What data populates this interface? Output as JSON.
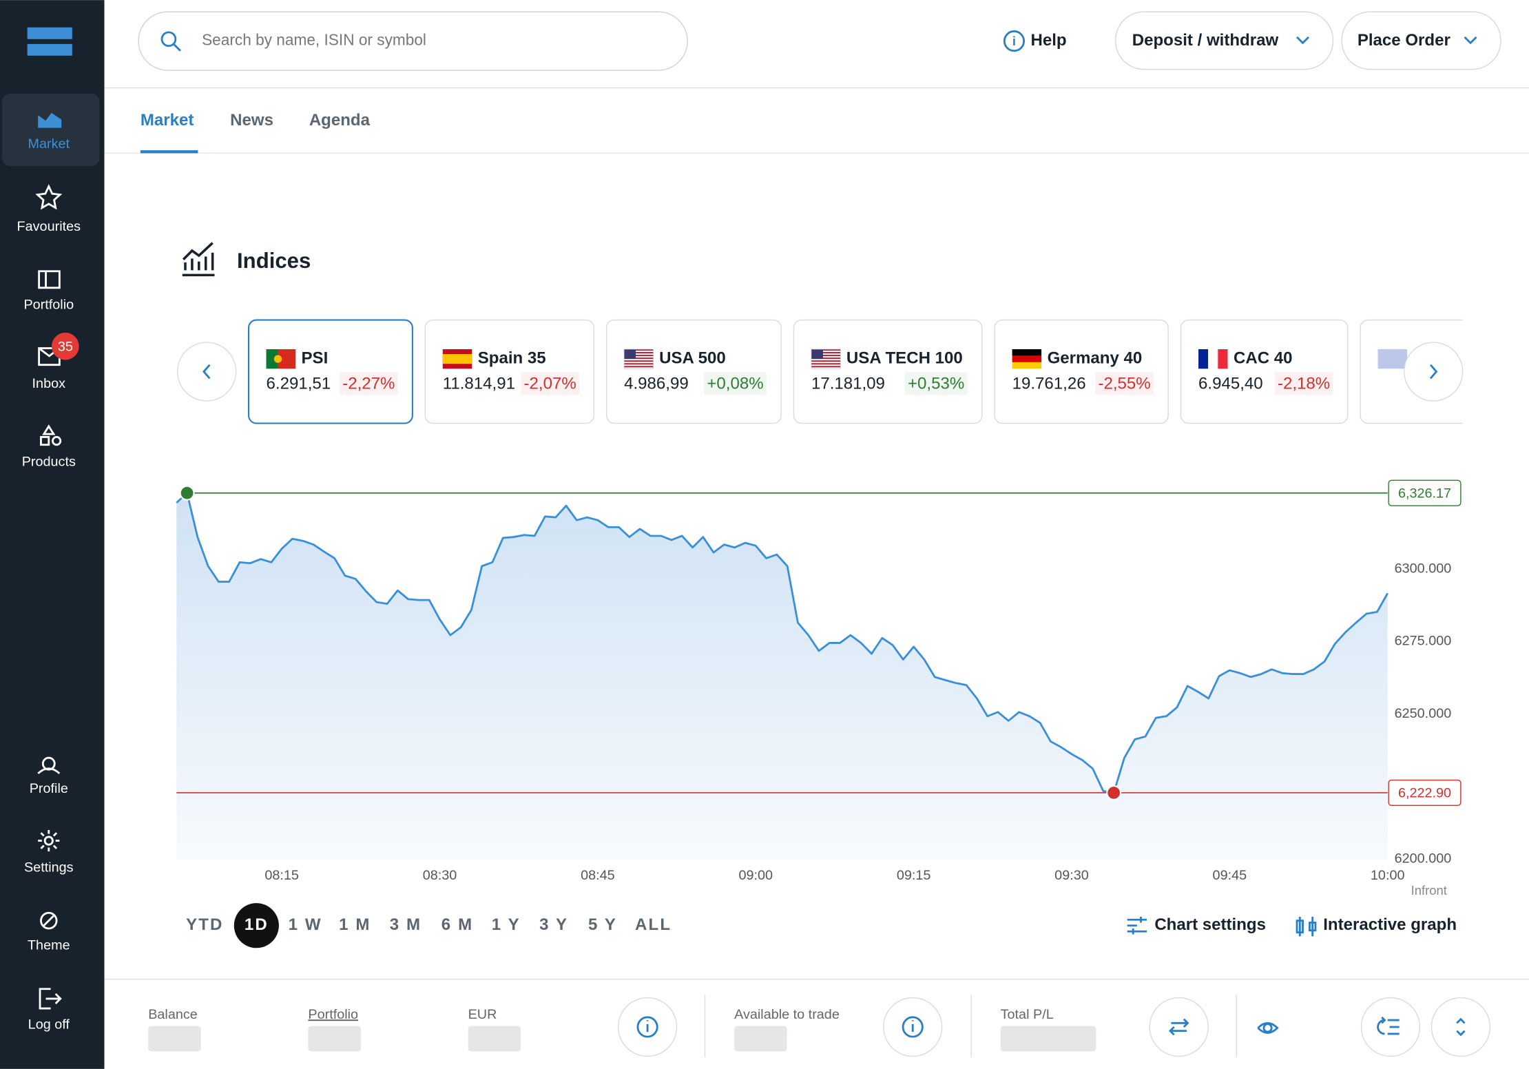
{
  "sidebar": {
    "items": [
      "Market",
      "Favourites",
      "Portfolio",
      "Inbox",
      "Products",
      "Profile",
      "Settings",
      "Theme",
      "Log off"
    ],
    "badge": 35
  },
  "header": {
    "search_placeholder": "Search by name, ISIN or symbol",
    "help": "Help",
    "deposit": "Deposit / withdraw",
    "place_order": "Place Order"
  },
  "tabs": [
    "Market",
    "News",
    "Agenda"
  ],
  "section_title": "Indices",
  "cards": [
    {
      "name": "PSI",
      "value": "6.291,51",
      "change": "-2,27%",
      "color": "#d0312d"
    },
    {
      "name": "Spain 35",
      "value": "11.814,91",
      "change": "-2,07%",
      "color": "#d0312d"
    },
    {
      "name": "USA 500",
      "value": "4.986,99",
      "change": "+0,08%",
      "color": "#2e7d32"
    },
    {
      "name": "USA TECH 100",
      "value": "17.181,09",
      "change": "+0,53%",
      "color": "#2e7d32"
    },
    {
      "name": "Germany 40",
      "value": "19.761,26",
      "change": "-2,55%",
      "color": "#d0312d"
    },
    {
      "name": "CAC 40",
      "value": "6.945,40",
      "change": "-2,18%",
      "color": "#d0312d"
    }
  ],
  "chart": {
    "type": "line",
    "color": "#3a8fd9",
    "x": [
      "08:05",
      "08:06",
      "08:07",
      "08:08",
      "08:09",
      "08:10",
      "08:11",
      "08:12",
      "08:13",
      "08:14",
      "08:15",
      "08:16",
      "08:17",
      "08:18",
      "08:19",
      "08:20",
      "08:21",
      "08:22",
      "08:23",
      "08:24",
      "08:25",
      "08:26",
      "08:27",
      "08:28",
      "08:29",
      "08:30",
      "08:31",
      "08:32",
      "08:33",
      "08:34",
      "08:35",
      "08:36",
      "08:37",
      "08:38",
      "08:39",
      "08:40",
      "08:41",
      "08:42",
      "08:43",
      "08:44",
      "08:45",
      "08:46",
      "08:47",
      "08:48",
      "08:49",
      "08:50",
      "08:51",
      "08:52",
      "08:53",
      "08:54",
      "08:55",
      "08:56",
      "08:57",
      "08:58",
      "08:59",
      "09:00",
      "09:01",
      "09:02",
      "09:03",
      "09:04",
      "09:05",
      "09:06",
      "09:07",
      "09:08",
      "09:09",
      "09:10",
      "09:11",
      "09:12",
      "09:13",
      "09:14",
      "09:15",
      "09:16",
      "09:17",
      "09:18",
      "09:19",
      "09:20",
      "09:21",
      "09:22",
      "09:23",
      "09:24",
      "09:25",
      "09:26",
      "09:27",
      "09:28",
      "09:29",
      "09:30",
      "09:31",
      "09:32",
      "09:33",
      "09:34",
      "09:35",
      "09:36",
      "09:37",
      "09:38",
      "09:39",
      "09:40",
      "09:41",
      "09:42",
      "09:43",
      "09:44",
      "09:45",
      "09:46",
      "09:47",
      "09:48",
      "09:49",
      "09:50",
      "09:51",
      "09:52",
      "09:53",
      "09:54",
      "09:55",
      "09:56",
      "09:57",
      "09:58",
      "09:59",
      "10:00"
    ],
    "values": [
      6322.8,
      6326.17,
      6311,
      6301,
      6295.6,
      6295.6,
      6302.3,
      6302,
      6303.4,
      6302.3,
      6307,
      6310.4,
      6309.7,
      6308.4,
      6306,
      6303.7,
      6297.7,
      6296.6,
      6292.3,
      6288.6,
      6288,
      6292.6,
      6289.6,
      6289.3,
      6289.3,
      6282.6,
      6277.2,
      6279.9,
      6285.9,
      6301,
      6302.3,
      6310.7,
      6311,
      6311.7,
      6311.4,
      6318.1,
      6317.8,
      6321.8,
      6316.8,
      6317.8,
      6316.8,
      6314.4,
      6314.4,
      6311,
      6313.8,
      6311.4,
      6311.4,
      6310,
      6311.4,
      6307.4,
      6311,
      6305.7,
      6308.4,
      6307.4,
      6309,
      6308,
      6303.7,
      6305,
      6301,
      6281.5,
      6277.2,
      6271.8,
      6274.5,
      6274.5,
      6277.2,
      6274.5,
      6270.8,
      6276.2,
      6273.8,
      6268.8,
      6273.2,
      6268.8,
      6262.8,
      6261.7,
      6260.7,
      6260,
      6255.4,
      6249.3,
      6250.7,
      6247.7,
      6250.7,
      6249.3,
      6247,
      6240.6,
      6238.6,
      6236.2,
      6234.2,
      6231.2,
      6223.5,
      6222.9,
      6234.9,
      6241.3,
      6242.3,
      6248.7,
      6249.3,
      6252.3,
      6259.7,
      6257.7,
      6255.4,
      6263.1,
      6265.1,
      6264.1,
      6262.8,
      6263.8,
      6265.4,
      6264.1,
      6263.8,
      6263.8,
      6265.4,
      6268.1,
      6274.2,
      6278.2,
      6281.5,
      6284.6,
      6285.2,
      6291.6
    ],
    "xlim": [
      "08:05",
      "10:00"
    ],
    "xticks": [
      "08:15",
      "08:30",
      "08:45",
      "09:00",
      "09:15",
      "09:30",
      "09:45",
      "10:00"
    ],
    "ylim": [
      6200,
      6328
    ],
    "yticks": [
      {
        "value": 6200,
        "label": "6200.000"
      },
      {
        "value": 6250,
        "label": "6250.000"
      },
      {
        "value": 6275,
        "label": "6275.000"
      },
      {
        "value": 6300,
        "label": "6300.000"
      }
    ],
    "high": {
      "time": "08:06",
      "value": 6326.17,
      "label": "6,326.17",
      "color": "#2e7d32"
    },
    "low": {
      "time": "09:34",
      "value": 6222.9,
      "label": "6,222.90",
      "color": "#d0312d"
    },
    "source": "Infront"
  },
  "ranges": [
    "YTD",
    "1D",
    "1 W",
    "1 M",
    "3 M",
    "6 M",
    "1 Y",
    "3 Y",
    "5 Y",
    "ALL"
  ],
  "active_range": 1,
  "chart_actions": [
    "Chart settings",
    "Interactive graph"
  ],
  "footer": {
    "labels": [
      "Balance",
      "Portfolio",
      "EUR",
      "Available to trade",
      "Total P/L"
    ]
  }
}
